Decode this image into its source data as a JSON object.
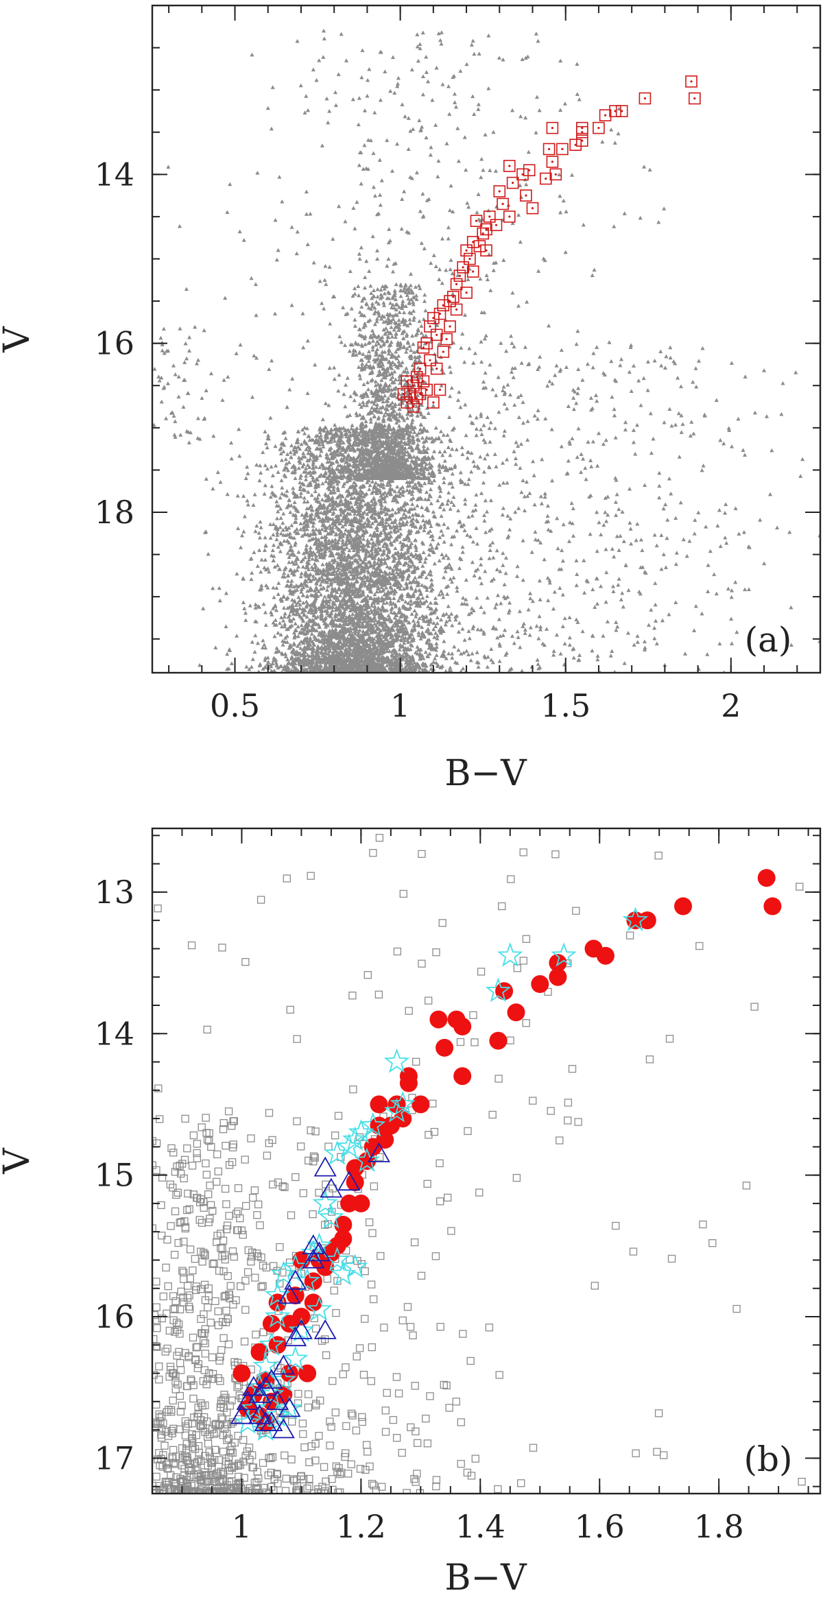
{
  "chart_data": [
    {
      "type": "scatter",
      "panel_label": "(a)",
      "xlabel": "B−V",
      "ylabel": "V",
      "xlim": [
        0.25,
        2.27
      ],
      "ylim": [
        19.9,
        12.0
      ],
      "y_inverted": true,
      "xticks": [
        {
          "v": 0.5,
          "label": "0.5"
        },
        {
          "v": 1.0,
          "label": "1"
        },
        {
          "v": 1.5,
          "label": "1.5"
        },
        {
          "v": 2.0,
          "label": "2"
        }
      ],
      "yticks": [
        {
          "v": 14,
          "label": "14"
        },
        {
          "v": 16,
          "label": "16"
        },
        {
          "v": 18,
          "label": "18"
        }
      ],
      "colors": {
        "field": "#8c8c8c",
        "members": "#d01818"
      },
      "series": [
        {
          "marker": "small-triangle",
          "color": "#8c8c8c",
          "generated_field": {
            "components": [
              {
                "n": 5200,
                "x_mean": 0.86,
                "x_sd": 0.13,
                "y_min": 17.0,
                "y_max": 19.9,
                "skew": 0.6
              },
              {
                "n": 1500,
                "x_mean": 0.96,
                "x_sd": 0.06,
                "y_min": 15.3,
                "y_max": 17.6,
                "skew": 1.2
              },
              {
                "n": 700,
                "x_mean": 1.05,
                "x_sd": 0.28,
                "y_min": 12.3,
                "y_max": 19.9,
                "skew": 0.0
              },
              {
                "n": 600,
                "x_mean": 1.5,
                "x_sd": 0.35,
                "y_min": 16.0,
                "y_max": 19.9,
                "skew": 0.0
              },
              {
                "n": 60,
                "x_mean": 0.33,
                "x_sd": 0.05,
                "y_min": 15.8,
                "y_max": 17.2,
                "skew": 0.0
              }
            ]
          }
        },
        {
          "marker": "open-square-with-dot",
          "color": "#d01818",
          "points": [
            [
              1.88,
              12.9
            ],
            [
              1.89,
              13.1
            ],
            [
              1.74,
              13.1
            ],
            [
              1.67,
              13.25
            ],
            [
              1.65,
              13.25
            ],
            [
              1.62,
              13.3
            ],
            [
              1.6,
              13.45
            ],
            [
              1.55,
              13.5
            ],
            [
              1.55,
              13.6
            ],
            [
              1.53,
              13.65
            ],
            [
              1.46,
              13.45
            ],
            [
              1.49,
              13.7
            ],
            [
              1.46,
              13.85
            ],
            [
              1.45,
              13.7
            ],
            [
              1.44,
              14.05
            ],
            [
              1.39,
              13.95
            ],
            [
              1.37,
              14.0
            ],
            [
              1.38,
              14.25
            ],
            [
              1.34,
              14.1
            ],
            [
              1.33,
              13.9
            ],
            [
              1.3,
              14.2
            ],
            [
              1.33,
              14.5
            ],
            [
              1.31,
              14.35
            ],
            [
              1.29,
              14.6
            ],
            [
              1.27,
              14.5
            ],
            [
              1.26,
              14.65
            ],
            [
              1.25,
              14.7
            ],
            [
              1.23,
              14.55
            ],
            [
              1.24,
              14.85
            ],
            [
              1.22,
              14.8
            ],
            [
              1.21,
              15.0
            ],
            [
              1.2,
              14.9
            ],
            [
              1.19,
              15.1
            ],
            [
              1.18,
              15.2
            ],
            [
              1.17,
              15.3
            ],
            [
              1.16,
              15.45
            ],
            [
              1.15,
              15.5
            ],
            [
              1.13,
              15.55
            ],
            [
              1.12,
              15.65
            ],
            [
              1.1,
              15.7
            ],
            [
              1.09,
              15.8
            ],
            [
              1.11,
              15.9
            ],
            [
              1.08,
              16.0
            ],
            [
              1.07,
              16.05
            ],
            [
              1.09,
              16.2
            ],
            [
              1.06,
              16.3
            ],
            [
              1.05,
              16.4
            ],
            [
              1.07,
              16.45
            ],
            [
              1.04,
              16.5
            ],
            [
              1.03,
              16.6
            ],
            [
              1.05,
              16.65
            ],
            [
              1.02,
              16.7
            ],
            [
              1.06,
              16.6
            ],
            [
              1.04,
              16.75
            ],
            [
              1.01,
              16.6
            ],
            [
              1.08,
              16.55
            ],
            [
              1.11,
              16.3
            ],
            [
              1.13,
              16.1
            ],
            [
              1.15,
              15.8
            ],
            [
              1.17,
              15.6
            ],
            [
              1.26,
              14.9
            ],
            [
              1.4,
              14.4
            ],
            [
              1.55,
              13.45
            ],
            [
              1.47,
              14.0
            ],
            [
              1.02,
              16.45
            ],
            [
              1.1,
              16.7
            ],
            [
              1.14,
              15.95
            ],
            [
              1.2,
              15.4
            ],
            [
              1.22,
              15.15
            ],
            [
              1.12,
              16.55
            ]
          ]
        }
      ]
    },
    {
      "type": "scatter",
      "panel_label": "(b)",
      "xlabel": "B−V",
      "ylabel": "V",
      "xlim": [
        0.85,
        1.97
      ],
      "ylim": [
        17.25,
        12.55
      ],
      "y_inverted": true,
      "xticks": [
        {
          "v": 1.0,
          "label": "1"
        },
        {
          "v": 1.2,
          "label": "1.2"
        },
        {
          "v": 1.4,
          "label": "1.4"
        },
        {
          "v": 1.6,
          "label": "1.6"
        },
        {
          "v": 1.8,
          "label": "1.8"
        }
      ],
      "yticks": [
        {
          "v": 13,
          "label": "13"
        },
        {
          "v": 14,
          "label": "14"
        },
        {
          "v": 15,
          "label": "15"
        },
        {
          "v": 16,
          "label": "16"
        },
        {
          "v": 17,
          "label": "17"
        }
      ],
      "colors": {
        "field": "#8c8c8c",
        "red": "#ee1111",
        "cyan": "#44dfe8",
        "blue": "#1a1ab0"
      },
      "series": [
        {
          "marker": "open-square",
          "color": "#8c8c8c",
          "generated_field": {
            "components": [
              {
                "n": 650,
                "x_mean": 0.93,
                "x_sd": 0.06,
                "y_min": 14.6,
                "y_max": 17.25,
                "skew": 1.4
              },
              {
                "n": 250,
                "x_mean": 1.13,
                "x_sd": 0.12,
                "y_min": 14.5,
                "y_max": 17.25,
                "skew": 0.8
              },
              {
                "n": 140,
                "x_mean": 1.3,
                "x_sd": 0.35,
                "y_min": 12.6,
                "y_max": 17.25,
                "skew": 0.0
              }
            ]
          }
        },
        {
          "marker": "filled-circle",
          "color": "#ee1111",
          "points": [
            [
              1.88,
              12.9
            ],
            [
              1.89,
              13.1
            ],
            [
              1.74,
              13.1
            ],
            [
              1.68,
              13.2
            ],
            [
              1.66,
              13.2
            ],
            [
              1.61,
              13.45
            ],
            [
              1.59,
              13.4
            ],
            [
              1.53,
              13.5
            ],
            [
              1.53,
              13.6
            ],
            [
              1.5,
              13.65
            ],
            [
              1.46,
              13.85
            ],
            [
              1.44,
              13.7
            ],
            [
              1.43,
              14.05
            ],
            [
              1.37,
              13.95
            ],
            [
              1.36,
              13.9
            ],
            [
              1.37,
              14.3
            ],
            [
              1.34,
              14.1
            ],
            [
              1.33,
              13.9
            ],
            [
              1.3,
              14.5
            ],
            [
              1.28,
              14.35
            ],
            [
              1.28,
              14.3
            ],
            [
              1.27,
              14.6
            ],
            [
              1.25,
              14.65
            ],
            [
              1.23,
              14.5
            ],
            [
              1.24,
              14.75
            ],
            [
              1.22,
              14.8
            ],
            [
              1.21,
              14.9
            ],
            [
              1.19,
              14.95
            ],
            [
              1.19,
              15.05
            ],
            [
              1.18,
              15.2
            ],
            [
              1.17,
              15.35
            ],
            [
              1.16,
              15.5
            ],
            [
              1.15,
              15.55
            ],
            [
              1.13,
              15.6
            ],
            [
              1.12,
              15.75
            ],
            [
              1.1,
              15.6
            ],
            [
              1.09,
              15.85
            ],
            [
              1.08,
              16.05
            ],
            [
              1.06,
              15.9
            ],
            [
              1.05,
              16.05
            ],
            [
              1.06,
              16.2
            ],
            [
              1.03,
              16.25
            ],
            [
              1.04,
              16.45
            ],
            [
              1.02,
              16.55
            ],
            [
              1.03,
              16.7
            ],
            [
              1.01,
              16.65
            ],
            [
              1.05,
              16.6
            ],
            [
              1.04,
              16.75
            ],
            [
              1.08,
              16.4
            ],
            [
              1.11,
              16.4
            ],
            [
              1.1,
              16.0
            ],
            [
              1.14,
              15.65
            ],
            [
              1.12,
              15.9
            ],
            [
              1.07,
              16.55
            ],
            [
              1.0,
              16.4
            ],
            [
              1.23,
              14.65
            ],
            [
              1.26,
              14.5
            ],
            [
              1.2,
              15.2
            ],
            [
              1.17,
              15.45
            ]
          ]
        },
        {
          "marker": "open-star",
          "color": "#44dfe8",
          "points": [
            [
              1.66,
              13.2
            ],
            [
              1.54,
              13.45
            ],
            [
              1.45,
              13.45
            ],
            [
              1.43,
              13.7
            ],
            [
              1.26,
              14.2
            ],
            [
              1.27,
              14.5
            ],
            [
              1.26,
              14.55
            ],
            [
              1.22,
              14.65
            ],
            [
              1.19,
              14.75
            ],
            [
              1.18,
              14.8
            ],
            [
              1.2,
              14.7
            ],
            [
              1.16,
              14.85
            ],
            [
              1.21,
              14.9
            ],
            [
              1.14,
              15.2
            ],
            [
              1.15,
              15.3
            ],
            [
              1.13,
              15.5
            ],
            [
              1.12,
              15.55
            ],
            [
              1.16,
              15.6
            ],
            [
              1.17,
              15.7
            ],
            [
              1.11,
              15.75
            ],
            [
              1.09,
              15.65
            ],
            [
              1.07,
              15.7
            ],
            [
              1.06,
              15.85
            ],
            [
              1.06,
              16.0
            ],
            [
              1.05,
              16.2
            ],
            [
              1.04,
              16.35
            ],
            [
              1.05,
              16.55
            ],
            [
              1.03,
              16.5
            ],
            [
              1.07,
              16.45
            ],
            [
              1.06,
              16.7
            ],
            [
              1.02,
              16.65
            ],
            [
              1.04,
              16.8
            ],
            [
              1.08,
              16.65
            ],
            [
              1.09,
              16.3
            ],
            [
              1.1,
              16.1
            ],
            [
              1.19,
              15.65
            ],
            [
              1.13,
              15.95
            ],
            [
              1.01,
              16.75
            ]
          ]
        },
        {
          "marker": "open-triangle",
          "color": "#1a1ab0",
          "points": [
            [
              1.23,
              14.85
            ],
            [
              1.18,
              15.05
            ],
            [
              1.14,
              14.95
            ],
            [
              1.15,
              15.1
            ],
            [
              1.12,
              15.5
            ],
            [
              1.13,
              15.55
            ],
            [
              1.12,
              15.6
            ],
            [
              1.09,
              15.75
            ],
            [
              1.08,
              15.85
            ],
            [
              1.1,
              16.1
            ],
            [
              1.09,
              16.15
            ],
            [
              1.14,
              16.1
            ],
            [
              1.07,
              16.35
            ],
            [
              1.05,
              16.45
            ],
            [
              1.04,
              16.5
            ],
            [
              1.03,
              16.55
            ],
            [
              1.02,
              16.5
            ],
            [
              1.01,
              16.6
            ],
            [
              1.03,
              16.7
            ],
            [
              1.05,
              16.75
            ],
            [
              1.07,
              16.8
            ],
            [
              1.08,
              16.65
            ],
            [
              1.06,
              16.6
            ],
            [
              1.04,
              16.75
            ],
            [
              1.0,
              16.7
            ]
          ]
        }
      ]
    }
  ]
}
